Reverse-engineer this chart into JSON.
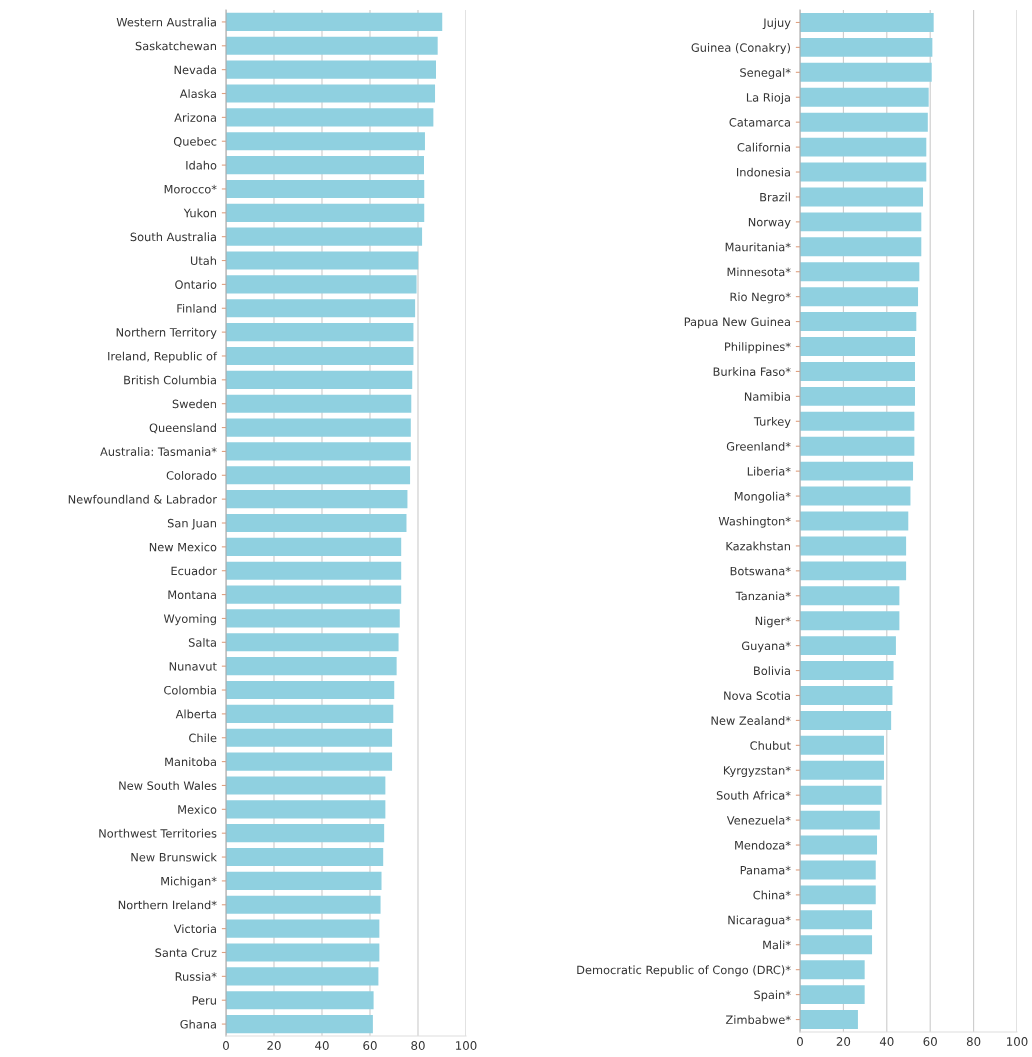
{
  "chart_data": [
    {
      "type": "bar",
      "orientation": "horizontal",
      "color": "#8fd0e0",
      "grid": "x",
      "xlim": [
        0,
        100
      ],
      "xticks": [
        0,
        20,
        40,
        60,
        80,
        100
      ],
      "categories": [
        "Western Australia",
        "Saskatchewan",
        "Nevada",
        "Alaska",
        "Arizona",
        "Quebec",
        "Idaho",
        "Morocco*",
        "Yukon",
        "South Australia",
        "Utah",
        "Ontario",
        "Finland",
        "Northern Territory",
        "Ireland, Republic of",
        "British Columbia",
        "Sweden",
        "Queensland",
        "Australia: Tasmania*",
        "Colorado",
        "Newfoundland & Labrador",
        "San Juan",
        "New Mexico",
        "Ecuador",
        "Montana",
        "Wyoming",
        "Salta",
        "Nunavut",
        "Colombia",
        "Alberta",
        "Chile",
        "Manitoba",
        "New South Wales",
        "Mexico",
        "Northwest Territories",
        "New Brunswick",
        "Michigan*",
        "Northern Ireland*",
        "Victoria",
        "Santa Cruz",
        "Russia*",
        "Peru",
        "Ghana"
      ],
      "values": [
        90.1,
        88.2,
        87.5,
        87.1,
        86.4,
        82.9,
        82.5,
        82.6,
        82.6,
        81.7,
        80.1,
        79.4,
        78.8,
        78.1,
        78.1,
        77.6,
        77.2,
        77.0,
        77.0,
        76.7,
        75.6,
        75.2,
        73.0,
        73.0,
        73.0,
        72.4,
        71.9,
        71.1,
        70.1,
        69.7,
        69.2,
        69.2,
        66.4,
        66.4,
        65.9,
        65.5,
        64.8,
        64.4,
        63.9,
        63.9,
        63.5,
        61.5,
        61.2
      ]
    },
    {
      "type": "bar",
      "orientation": "horizontal",
      "color": "#8fd0e0",
      "grid": "x",
      "xlim": [
        0,
        100
      ],
      "xticks": [
        0,
        20,
        40,
        60,
        80,
        100
      ],
      "categories": [
        "Jujuy",
        "Guinea (Conakry)",
        "Senegal*",
        "La Rioja",
        "Catamarca",
        "California",
        "Indonesia",
        "Brazil",
        "Norway",
        "Mauritania*",
        "Minnesota*",
        "Rio Negro*",
        "Papua New Guinea",
        "Philippines*",
        "Burkina Faso*",
        "Namibia",
        "Turkey",
        "Greenland*",
        "Liberia*",
        "Mongolia*",
        "Washington*",
        "Kazakhstan",
        "Botswana*",
        "Tanzania*",
        "Niger*",
        "Guyana*",
        "Bolivia",
        "Nova Scotia",
        "New Zealand*",
        "Chubut",
        "Kyrgyzstan*",
        "South Africa*",
        "Venezuela*",
        "Mendoza*",
        "Panama*",
        "China*",
        "Nicaragua*",
        "Mali*",
        "Democratic Republic of Congo (DRC)*",
        "Spain*",
        "Zimbabwe*"
      ],
      "values": [
        61.6,
        61.0,
        60.7,
        59.3,
        58.9,
        58.2,
        58.2,
        56.7,
        55.9,
        55.9,
        55.0,
        54.4,
        53.6,
        53.0,
        53.0,
        53.0,
        52.7,
        52.7,
        52.1,
        50.9,
        49.9,
        48.9,
        48.9,
        45.8,
        45.8,
        44.2,
        43.1,
        42.6,
        42.0,
        38.7,
        38.7,
        37.6,
        36.8,
        35.5,
        34.9,
        34.9,
        33.2,
        33.2,
        29.8,
        29.8,
        26.7
      ]
    }
  ]
}
